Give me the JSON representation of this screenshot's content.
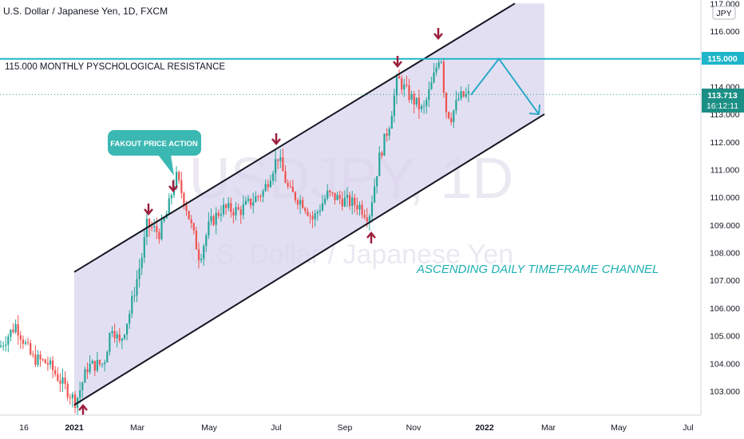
{
  "header": {
    "symbol_title": "U.S. Dollar / Japanese Yen, 1D, FXCM",
    "currency_badge": "JPY"
  },
  "watermark": {
    "ticker": "USDJPY, 1D",
    "name": "U.S. Dollar / Japanese Yen"
  },
  "annotations": {
    "resistance_label": "115.000 MONTHLY PYSCHOLOGICAL RESISTANCE",
    "fakeout_label": "FAKOUT PRICE ACTION",
    "channel_label": "ASCENDING DAILY TIMEFRAME CHANNEL"
  },
  "price_labels": {
    "resistance_price": "115.000",
    "last_price": "113.713",
    "countdown": "16:12:11"
  },
  "colors": {
    "up": "#26a69a",
    "down": "#ef5350",
    "channel_fill": "#d9d4ee",
    "resistance": "#1fb5c9",
    "arrow": "#9b1f3d",
    "projection": "#29a9c7",
    "fakeout_box": "#3cb8b3"
  },
  "chart_data": {
    "type": "candlestick",
    "symbol": "USDJPY",
    "timeframe": "1D",
    "y_axis": {
      "ticks": [
        "117.000",
        "116.000",
        "115.000",
        "114.000",
        "113.000",
        "112.000",
        "111.000",
        "110.000",
        "109.000",
        "108.000",
        "107.000",
        "106.000",
        "105.000",
        "104.000",
        "103.000"
      ],
      "ylim": [
        102.3,
        117.1
      ]
    },
    "x_axis": {
      "ticks": [
        "16",
        "2021",
        "Mar",
        "May",
        "Jul",
        "Sep",
        "Nov",
        "2022",
        "Mar",
        "May",
        "Jul"
      ]
    },
    "resistance_level": 115.0,
    "last_price": 113.713,
    "price_path": [
      {
        "x": 0,
        "y": 104.6
      },
      {
        "x": 20,
        "y": 105.4
      },
      {
        "x": 40,
        "y": 104.2
      },
      {
        "x": 60,
        "y": 104.0
      },
      {
        "x": 80,
        "y": 103.2
      },
      {
        "x": 95,
        "y": 102.6
      },
      {
        "x": 110,
        "y": 103.9
      },
      {
        "x": 130,
        "y": 104.0
      },
      {
        "x": 140,
        "y": 105.4
      },
      {
        "x": 150,
        "y": 104.7
      },
      {
        "x": 162,
        "y": 105.8
      },
      {
        "x": 178,
        "y": 107.9
      },
      {
        "x": 184,
        "y": 109.0
      },
      {
        "x": 200,
        "y": 108.7
      },
      {
        "x": 210,
        "y": 109.5
      },
      {
        "x": 220,
        "y": 110.8
      },
      {
        "x": 232,
        "y": 109.8
      },
      {
        "x": 250,
        "y": 107.8
      },
      {
        "x": 262,
        "y": 109.0
      },
      {
        "x": 278,
        "y": 109.6
      },
      {
        "x": 300,
        "y": 109.5
      },
      {
        "x": 330,
        "y": 110.2
      },
      {
        "x": 348,
        "y": 111.5
      },
      {
        "x": 362,
        "y": 110.2
      },
      {
        "x": 380,
        "y": 109.8
      },
      {
        "x": 392,
        "y": 109.2
      },
      {
        "x": 410,
        "y": 110.1
      },
      {
        "x": 430,
        "y": 109.9
      },
      {
        "x": 450,
        "y": 109.7
      },
      {
        "x": 462,
        "y": 109.3
      },
      {
        "x": 475,
        "y": 111.4
      },
      {
        "x": 488,
        "y": 112.7
      },
      {
        "x": 498,
        "y": 114.3
      },
      {
        "x": 512,
        "y": 113.7
      },
      {
        "x": 530,
        "y": 113.1
      },
      {
        "x": 542,
        "y": 114.2
      },
      {
        "x": 552,
        "y": 115.3
      },
      {
        "x": 558,
        "y": 113.2
      },
      {
        "x": 565,
        "y": 112.9
      },
      {
        "x": 575,
        "y": 113.6
      },
      {
        "x": 590,
        "y": 113.713
      }
    ],
    "channel": {
      "upper": [
        {
          "x": 93,
          "y": 107.3
        },
        {
          "x": 645,
          "y": 117.0
        }
      ],
      "lower": [
        {
          "x": 93,
          "y": 102.5
        },
        {
          "x": 682,
          "y": 113.0
        }
      ]
    },
    "projection_path": [
      {
        "x": 590,
        "y": 113.7
      },
      {
        "x": 625,
        "y": 115.0
      },
      {
        "x": 675,
        "y": 113.0
      }
    ]
  }
}
